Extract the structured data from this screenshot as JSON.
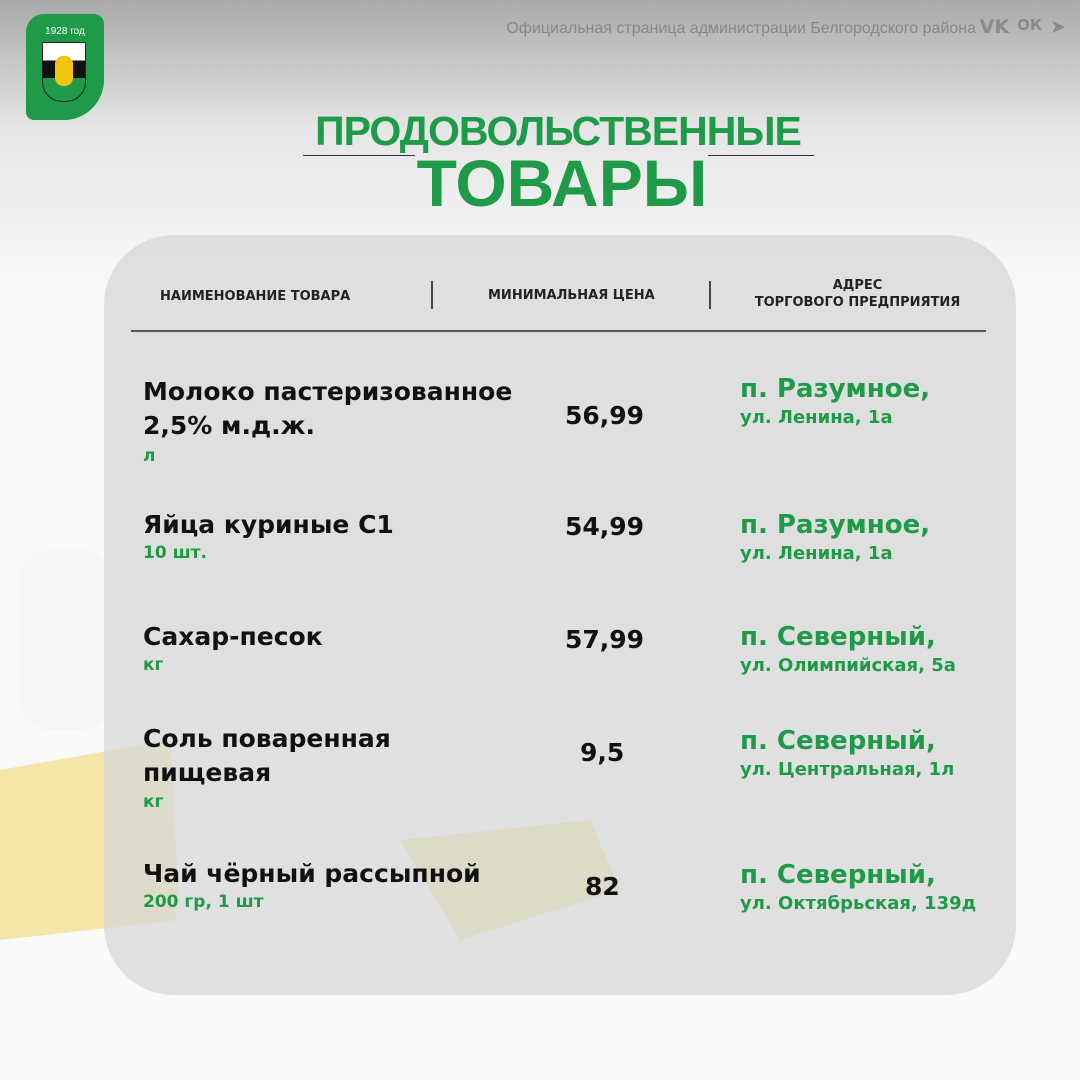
{
  "header": {
    "logo_year": "1928 год",
    "tagline": "Официальная страница администрации Белгородского района",
    "social": [
      {
        "icon": "vk-icon",
        "label": "VK"
      },
      {
        "icon": "odnoklassniki-icon",
        "label": "ОК"
      },
      {
        "icon": "telegram-icon",
        "label": "➤"
      }
    ]
  },
  "title": {
    "line1": "ПРОДОВОЛЬСТВЕННЫЕ",
    "line2": "ТОВАРЫ"
  },
  "colors": {
    "accent": "#1e9a48"
  },
  "table": {
    "columns": [
      "НАИМЕНОВАНИЕ ТОВАРА",
      "МИНИМАЛЬНАЯ ЦЕНА",
      "АДРЕС",
      "ТОРГОВОГО ПРЕДПРИЯТИЯ"
    ],
    "rows": [
      {
        "name1": "Молоко пастеризованное",
        "name2": "2,5% м.д.ж.",
        "unit": "л",
        "price": "56,99",
        "addr1": "п. Разумное,",
        "addr2": "ул. Ленина, 1а"
      },
      {
        "name1": "Яйца куриные С1",
        "name2": "",
        "unit": "10 шт.",
        "price": "54,99",
        "addr1": "п. Разумное,",
        "addr2": "ул. Ленина, 1а"
      },
      {
        "name1": "Сахар-песок",
        "name2": "",
        "unit": "кг",
        "price": "57,99",
        "addr1": "п. Северный,",
        "addr2": "ул. Олимпийская, 5а"
      },
      {
        "name1": "Соль поваренная",
        "name2": "пищевая",
        "unit": "кг",
        "price": "9,5",
        "addr1": "п. Северный,",
        "addr2": "ул. Центральная, 1л"
      },
      {
        "name1": "Чай чёрный рассыпной",
        "name2": "",
        "unit": "200 гр, 1 шт",
        "price": "82",
        "addr1": "п. Северный,",
        "addr2": "ул. Октябрьская, 139д"
      }
    ]
  }
}
